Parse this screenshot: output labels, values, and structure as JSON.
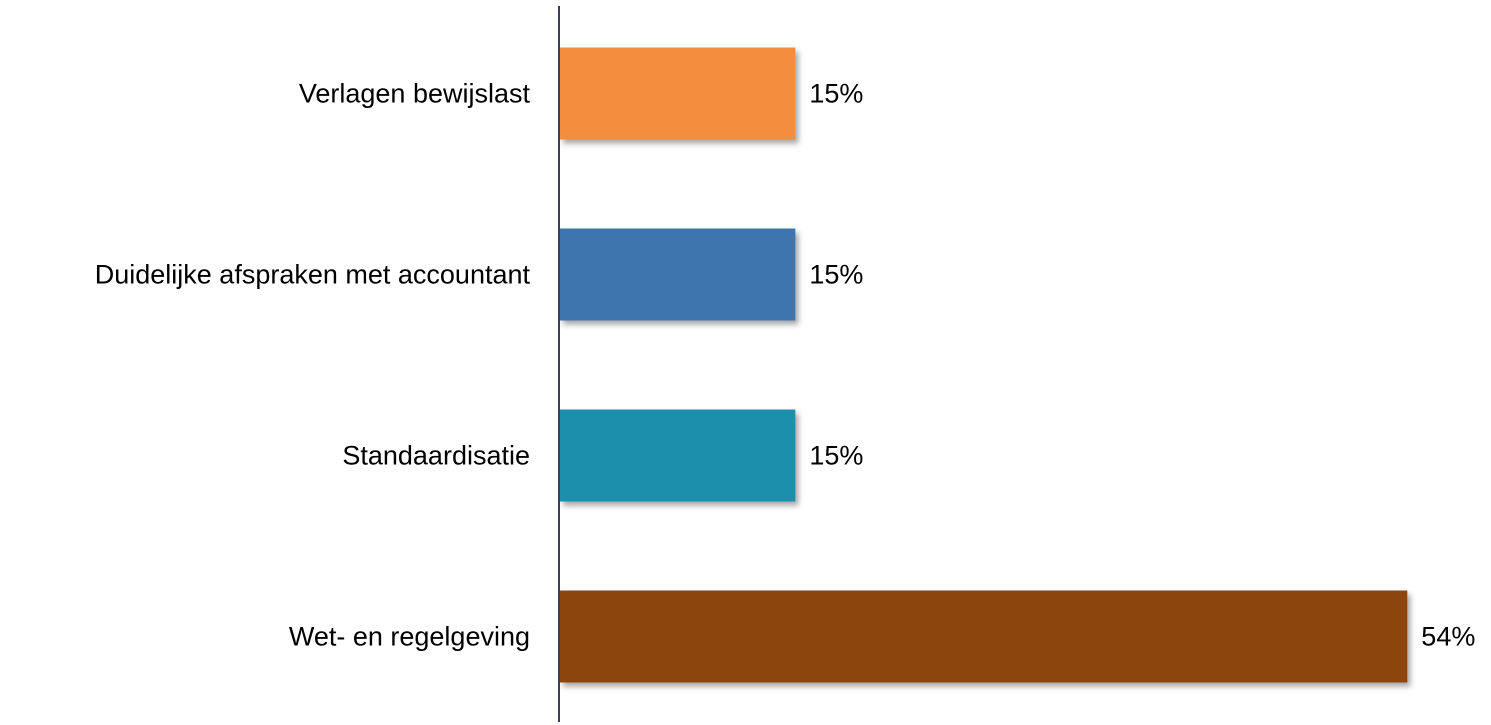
{
  "chart_data": {
    "type": "barh",
    "categories": [
      "Verlagen bewijslast",
      "Duidelijke afspraken met accountant",
      "Standaardisatie",
      "Wet- en regelgeving"
    ],
    "values": [
      15,
      15,
      15,
      54
    ],
    "value_labels": [
      "15%",
      "15%",
      "15%",
      "54%"
    ],
    "colors": [
      "#f28e3c",
      "#3d76ac",
      "#1f8fad",
      "#8b4509"
    ],
    "xlim": [
      0,
      55
    ]
  }
}
